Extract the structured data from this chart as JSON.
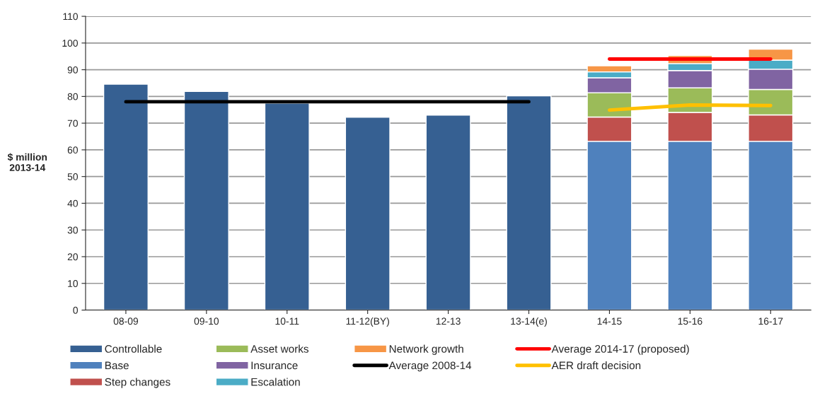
{
  "chart_data": {
    "type": "bar",
    "stacked": true,
    "ylabel": "$ million\n2013-14",
    "categories": [
      "08-09",
      "09-10",
      "10-11",
      "11-12(BY)",
      "12-13",
      "13-14(e)",
      "14-15",
      "15-16",
      "16-17"
    ],
    "ylim": [
      0,
      110
    ],
    "yticks": [
      0,
      10,
      20,
      30,
      40,
      50,
      60,
      70,
      80,
      90,
      100,
      110
    ],
    "grid": "y",
    "legend": "bottom",
    "series": [
      {
        "name": "Controllable",
        "color": "#366092",
        "values": [
          84.6,
          81.9,
          77.5,
          72.2,
          73.0,
          80.2,
          null,
          null,
          null
        ]
      },
      {
        "name": "Base",
        "color": "#4f81bd",
        "values": [
          null,
          null,
          null,
          null,
          null,
          null,
          63.2,
          63.2,
          63.2
        ]
      },
      {
        "name": "Step changes",
        "color": "#c0504d",
        "values": [
          null,
          null,
          null,
          null,
          null,
          null,
          9.1,
          10.8,
          9.9
        ]
      },
      {
        "name": "Asset works",
        "color": "#9bbb59",
        "values": [
          null,
          null,
          null,
          null,
          null,
          null,
          9.1,
          9.2,
          9.5
        ]
      },
      {
        "name": "Insurance",
        "color": "#8064a2",
        "values": [
          null,
          null,
          null,
          null,
          null,
          null,
          5.6,
          6.5,
          7.6
        ]
      },
      {
        "name": "Escalation",
        "color": "#4bacc6",
        "values": [
          null,
          null,
          null,
          null,
          null,
          null,
          2.2,
          2.6,
          3.4
        ]
      },
      {
        "name": "Network growth",
        "color": "#f79646",
        "values": [
          null,
          null,
          null,
          null,
          null,
          null,
          2.3,
          3.0,
          4.1
        ]
      },
      {
        "name": "Average 2008-14",
        "type": "line",
        "color": "#000000",
        "values": [
          78.0,
          78.0,
          78.0,
          78.0,
          78.0,
          78.0,
          null,
          null,
          null
        ]
      },
      {
        "name": "Average 2014-17 (proposed)",
        "type": "line",
        "color": "#ff0000",
        "values": [
          null,
          null,
          null,
          null,
          null,
          null,
          94.0,
          94.0,
          94.0
        ]
      },
      {
        "name": "AER draft decision",
        "type": "line",
        "color": "#ffc000",
        "values": [
          null,
          null,
          null,
          null,
          null,
          null,
          74.9,
          76.8,
          76.6
        ]
      }
    ]
  }
}
